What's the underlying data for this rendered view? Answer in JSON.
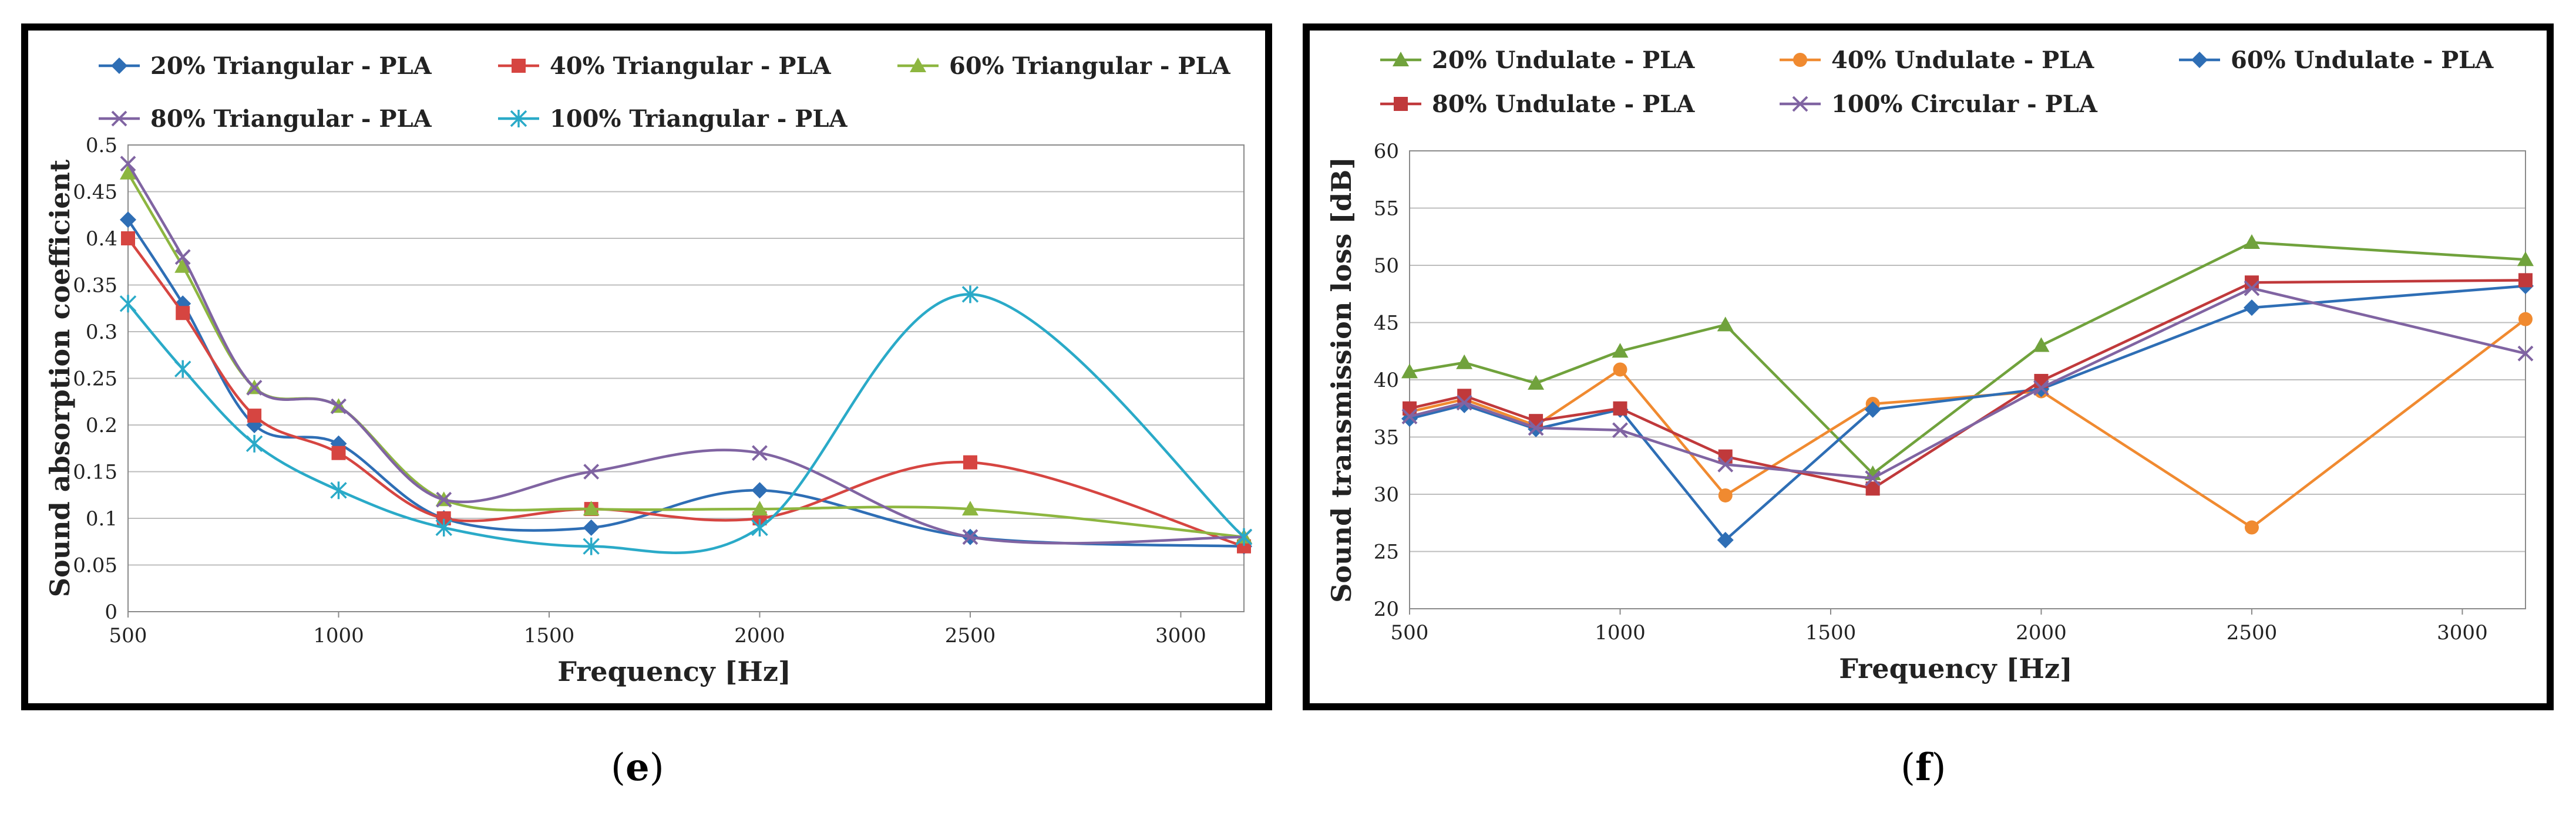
{
  "chart_data": [
    {
      "id": "e",
      "type": "line",
      "title": "",
      "xlabel": "Frequency [Hz]",
      "ylabel": "Sound absorption coefficient",
      "xlim": [
        500,
        3150
      ],
      "ylim": [
        0,
        0.5
      ],
      "xticks": [
        500,
        1000,
        1500,
        2000,
        2500,
        3000
      ],
      "xtick_labels": [
        "500",
        "1000",
        "1500",
        "2000",
        "2500",
        "3000"
      ],
      "yticks": [
        0,
        0.05,
        0.1,
        0.15,
        0.2,
        0.25,
        0.3,
        0.35,
        0.4,
        0.45,
        0.5
      ],
      "ytick_labels": [
        "0",
        "0.05",
        "0.1",
        "0.15",
        "0.2",
        "0.25",
        "0.3",
        "0.35",
        "0.4",
        "0.45",
        "0.5"
      ],
      "grid": true,
      "smooth": true,
      "legend_position": "top",
      "x": [
        500,
        630,
        800,
        1000,
        1250,
        1600,
        2000,
        2500,
        3150
      ],
      "series": [
        {
          "name": "20% Triangular - PLA",
          "color": "#2E6EB5",
          "marker": "diamond",
          "values": [
            0.42,
            0.33,
            0.2,
            0.18,
            0.1,
            0.09,
            0.13,
            0.08,
            0.07
          ]
        },
        {
          "name": "40% Triangular - PLA",
          "color": "#D64541",
          "marker": "square",
          "values": [
            0.4,
            0.32,
            0.21,
            0.17,
            0.1,
            0.11,
            0.1,
            0.16,
            0.07
          ]
        },
        {
          "name": "60% Triangular - PLA",
          "color": "#8DB640",
          "marker": "triangle",
          "values": [
            0.47,
            0.37,
            0.24,
            0.22,
            0.12,
            0.11,
            0.11,
            0.11,
            0.08
          ]
        },
        {
          "name": "80% Triangular - PLA",
          "color": "#8064A2",
          "marker": "x",
          "values": [
            0.48,
            0.38,
            0.24,
            0.22,
            0.12,
            0.15,
            0.17,
            0.08,
            0.08
          ]
        },
        {
          "name": "100% Triangular - PLA",
          "color": "#2AAAC8",
          "marker": "star",
          "values": [
            0.33,
            0.26,
            0.18,
            0.13,
            0.09,
            0.07,
            0.09,
            0.34,
            0.08
          ]
        }
      ]
    },
    {
      "id": "f",
      "type": "line",
      "title": "",
      "xlabel": "Frequency [Hz]",
      "ylabel": "Sound transmission loss [dB]",
      "xlim": [
        500,
        3150
      ],
      "ylim": [
        20,
        60
      ],
      "xticks": [
        500,
        1000,
        1500,
        2000,
        2500,
        3000
      ],
      "xtick_labels": [
        "500",
        "1000",
        "1500",
        "2000",
        "2500",
        "3000"
      ],
      "yticks": [
        20,
        25,
        30,
        35,
        40,
        45,
        50,
        55,
        60
      ],
      "ytick_labels": [
        "20",
        "25",
        "30",
        "35",
        "40",
        "45",
        "50",
        "55",
        "60"
      ],
      "grid": true,
      "smooth": false,
      "legend_position": "top",
      "x": [
        500,
        630,
        800,
        1000,
        1250,
        1600,
        2000,
        2500,
        3150
      ],
      "series": [
        {
          "name": "20% Undulate - PLA",
          "color": "#70A23C",
          "marker": "triangle",
          "values": [
            40.7,
            41.5,
            39.7,
            42.5,
            44.8,
            31.8,
            43.0,
            52.0,
            50.5
          ]
        },
        {
          "name": "40% Undulate - PLA",
          "color": "#F08A30",
          "marker": "circle",
          "values": [
            37.2,
            38.3,
            36.0,
            40.9,
            29.9,
            37.9,
            39.0,
            27.1,
            45.3
          ]
        },
        {
          "name": "60% Undulate - PLA",
          "color": "#2E6EB5",
          "marker": "diamond",
          "values": [
            36.6,
            37.8,
            35.7,
            37.4,
            26.0,
            37.4,
            39.2,
            46.3,
            48.2
          ]
        },
        {
          "name": "80% Undulate - PLA",
          "color": "#C0393B",
          "marker": "square",
          "values": [
            37.5,
            38.6,
            36.4,
            37.5,
            33.3,
            30.5,
            39.9,
            48.5,
            48.7
          ]
        },
        {
          "name": "100% Circular - PLA",
          "color": "#8064A2",
          "marker": "x",
          "values": [
            36.8,
            38.0,
            35.8,
            35.6,
            32.6,
            31.4,
            39.3,
            48.0,
            42.3
          ]
        }
      ]
    }
  ],
  "captions": {
    "e_open": "(",
    "e_letter": "e",
    "e_close": ")",
    "f_open": "(",
    "f_letter": "f",
    "f_close": ")"
  }
}
